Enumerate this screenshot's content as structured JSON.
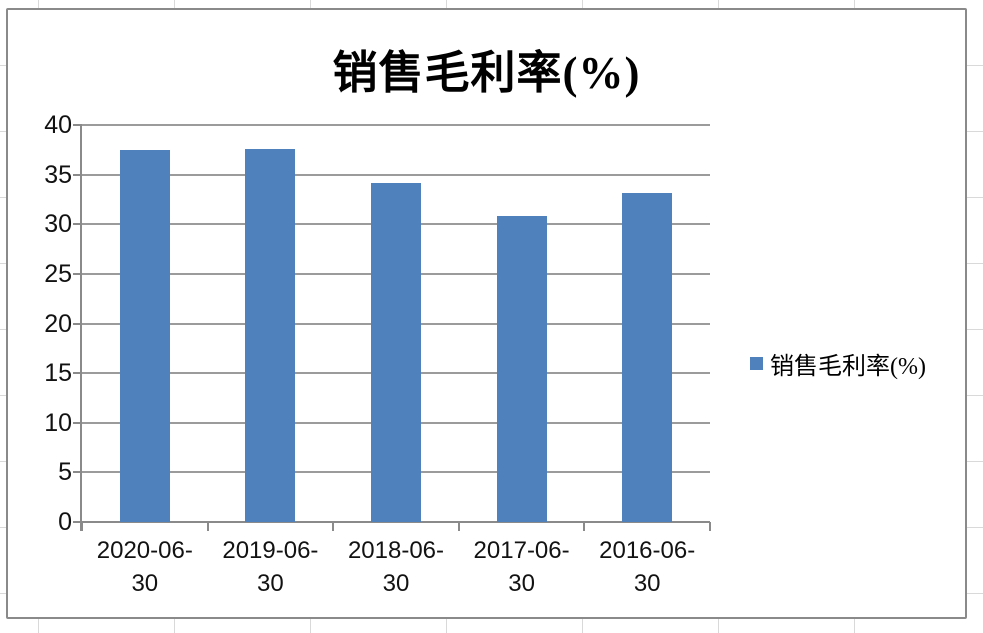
{
  "chart_data": {
    "type": "bar",
    "title": "销售毛利率(%)",
    "categories": [
      "2020-06-30",
      "2019-06-30",
      "2018-06-30",
      "2017-06-30",
      "2016-06-30"
    ],
    "series": [
      {
        "name": "销售毛利率(%)",
        "values": [
          37.5,
          37.6,
          34.2,
          30.8,
          33.1
        ]
      }
    ],
    "xlabel": "",
    "ylabel": "",
    "ylim": [
      0,
      40
    ],
    "ytick_step": 5,
    "yticks": [
      0,
      5,
      10,
      15,
      20,
      25,
      30,
      35,
      40
    ],
    "grid": true,
    "legend_position": "right",
    "bar_color": "#4F81BD"
  },
  "colors": {
    "bar": "#4F81BD",
    "gridline": "#9b9b9b",
    "axis": "#8a8a8a",
    "chart_border": "#8a8a8a",
    "cell_grid": "#d9d9d9",
    "text": "#121212"
  }
}
